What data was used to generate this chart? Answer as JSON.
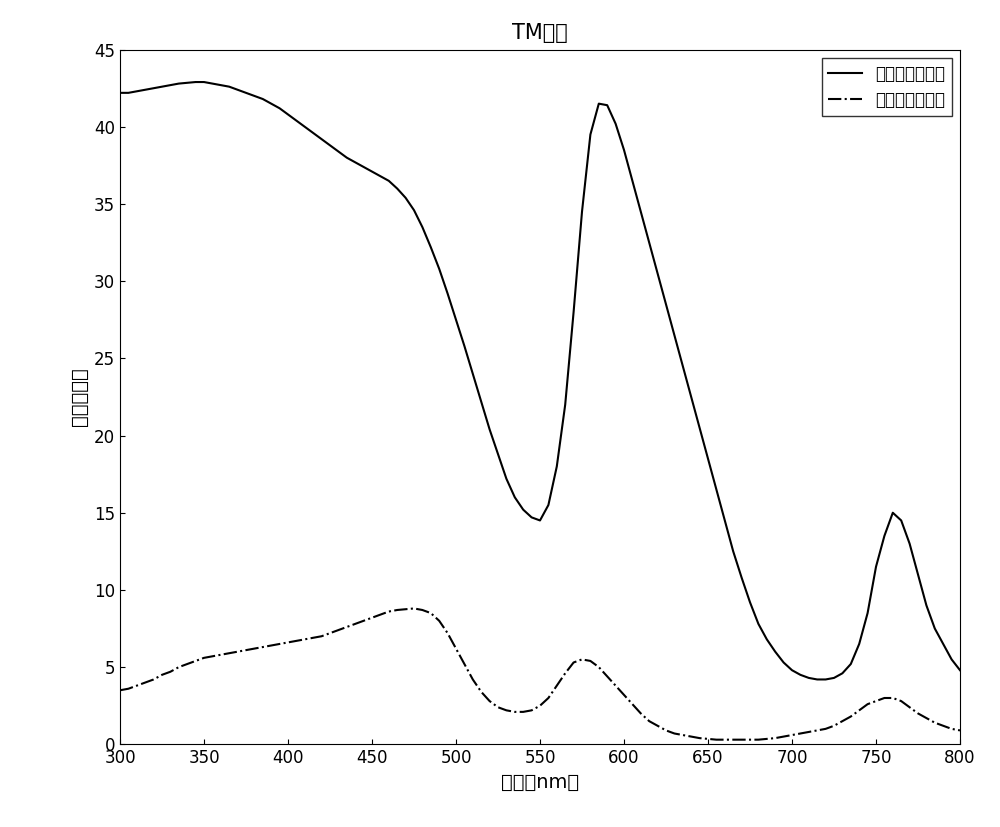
{
  "title": "TM入射",
  "xlabel": "波长（nm）",
  "ylabel": "吸收自分比",
  "xlim": [
    300,
    800
  ],
  "ylim": [
    0,
    45
  ],
  "xticks": [
    300,
    350,
    400,
    450,
    500,
    550,
    600,
    650,
    700,
    750,
    800
  ],
  "yticks": [
    0,
    5,
    10,
    15,
    20,
    25,
    30,
    35,
    40,
    45
  ],
  "legend1": "上表面金属吸收",
  "legend2": "下表面金属吸收",
  "line1_x": [
    300,
    305,
    310,
    315,
    320,
    325,
    330,
    335,
    340,
    345,
    350,
    355,
    360,
    365,
    370,
    375,
    380,
    385,
    390,
    395,
    400,
    405,
    410,
    415,
    420,
    425,
    430,
    435,
    440,
    445,
    450,
    455,
    460,
    465,
    470,
    475,
    480,
    485,
    490,
    495,
    500,
    505,
    510,
    515,
    520,
    525,
    530,
    535,
    540,
    545,
    550,
    555,
    560,
    565,
    570,
    575,
    580,
    585,
    590,
    595,
    600,
    605,
    610,
    615,
    620,
    625,
    630,
    635,
    640,
    645,
    650,
    655,
    660,
    665,
    670,
    675,
    680,
    685,
    690,
    695,
    700,
    705,
    710,
    715,
    720,
    725,
    730,
    735,
    740,
    745,
    750,
    755,
    760,
    765,
    770,
    775,
    780,
    785,
    790,
    795,
    800
  ],
  "line1_y": [
    42.2,
    42.2,
    42.3,
    42.4,
    42.5,
    42.6,
    42.7,
    42.8,
    42.85,
    42.9,
    42.9,
    42.8,
    42.7,
    42.6,
    42.4,
    42.2,
    42.0,
    41.8,
    41.5,
    41.2,
    40.8,
    40.4,
    40.0,
    39.6,
    39.2,
    38.8,
    38.4,
    38.0,
    37.7,
    37.4,
    37.1,
    36.8,
    36.5,
    36.0,
    35.4,
    34.6,
    33.5,
    32.2,
    30.8,
    29.2,
    27.5,
    25.8,
    24.0,
    22.2,
    20.4,
    18.8,
    17.2,
    16.0,
    15.2,
    14.7,
    14.5,
    15.5,
    18.0,
    22.0,
    28.0,
    34.5,
    39.5,
    41.5,
    41.4,
    40.2,
    38.5,
    36.5,
    34.5,
    32.5,
    30.5,
    28.5,
    26.5,
    24.5,
    22.5,
    20.5,
    18.5,
    16.5,
    14.5,
    12.5,
    10.8,
    9.2,
    7.8,
    6.8,
    6.0,
    5.3,
    4.8,
    4.5,
    4.3,
    4.2,
    4.2,
    4.3,
    4.6,
    5.2,
    6.5,
    8.5,
    11.5,
    13.5,
    15.0,
    14.5,
    13.0,
    11.0,
    9.0,
    7.5,
    6.5,
    5.5,
    4.8
  ],
  "line2_x": [
    300,
    305,
    310,
    315,
    320,
    325,
    330,
    335,
    340,
    345,
    350,
    355,
    360,
    365,
    370,
    375,
    380,
    385,
    390,
    395,
    400,
    405,
    410,
    415,
    420,
    425,
    430,
    435,
    440,
    445,
    450,
    455,
    460,
    465,
    470,
    475,
    480,
    485,
    490,
    495,
    500,
    505,
    510,
    515,
    520,
    525,
    530,
    535,
    540,
    545,
    550,
    555,
    560,
    565,
    570,
    575,
    580,
    585,
    590,
    595,
    600,
    605,
    610,
    615,
    620,
    625,
    630,
    635,
    640,
    645,
    650,
    655,
    660,
    665,
    670,
    675,
    680,
    685,
    690,
    695,
    700,
    705,
    710,
    715,
    720,
    725,
    730,
    735,
    740,
    745,
    750,
    755,
    760,
    765,
    770,
    775,
    780,
    785,
    790,
    795,
    800
  ],
  "line2_y": [
    3.5,
    3.6,
    3.8,
    4.0,
    4.2,
    4.5,
    4.7,
    5.0,
    5.2,
    5.4,
    5.6,
    5.7,
    5.8,
    5.9,
    6.0,
    6.1,
    6.2,
    6.3,
    6.4,
    6.5,
    6.6,
    6.7,
    6.8,
    6.9,
    7.0,
    7.2,
    7.4,
    7.6,
    7.8,
    8.0,
    8.2,
    8.4,
    8.6,
    8.7,
    8.75,
    8.8,
    8.7,
    8.5,
    8.0,
    7.2,
    6.2,
    5.2,
    4.2,
    3.4,
    2.8,
    2.4,
    2.2,
    2.1,
    2.1,
    2.2,
    2.5,
    3.0,
    3.8,
    4.6,
    5.3,
    5.5,
    5.4,
    5.0,
    4.4,
    3.8,
    3.2,
    2.6,
    2.0,
    1.5,
    1.2,
    0.9,
    0.7,
    0.6,
    0.5,
    0.4,
    0.35,
    0.3,
    0.3,
    0.3,
    0.3,
    0.3,
    0.3,
    0.35,
    0.4,
    0.5,
    0.6,
    0.7,
    0.8,
    0.9,
    1.0,
    1.2,
    1.5,
    1.8,
    2.2,
    2.6,
    2.8,
    3.0,
    3.0,
    2.8,
    2.4,
    2.0,
    1.7,
    1.4,
    1.2,
    1.0,
    0.9
  ]
}
